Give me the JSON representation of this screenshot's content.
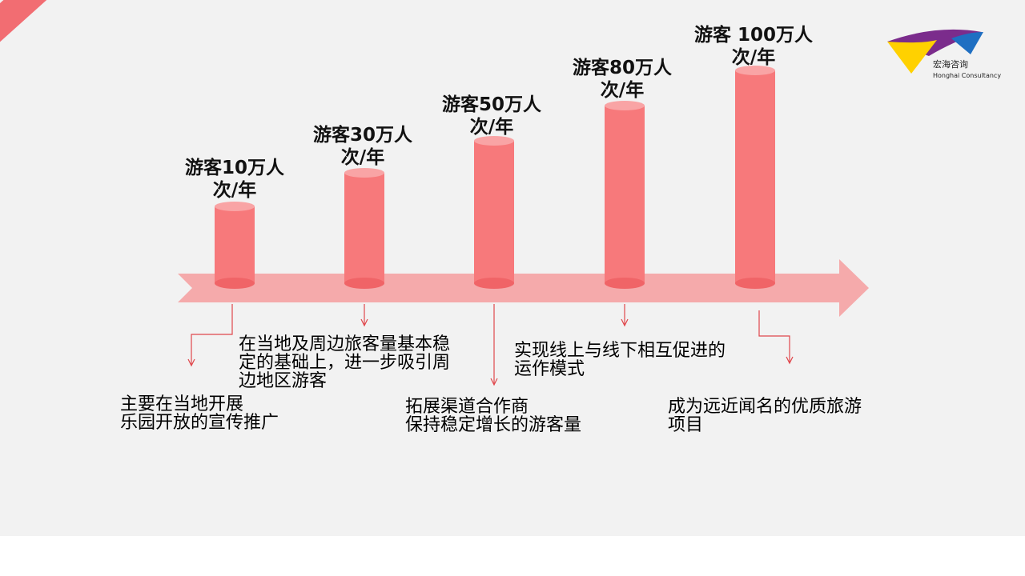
{
  "logo": {
    "name_cn": "宏海咨询",
    "name_en": "Honghai Consultancy",
    "colors": [
      "#ffd100",
      "#7b2c8c",
      "#1f6fc2"
    ]
  },
  "colors": {
    "accent": "#f26d72",
    "cylinder": "#f7797b",
    "arrow": "#f4a5a6",
    "connector": "#e0474c"
  },
  "stages": [
    {
      "label_line1": "游客10万人",
      "label_line2": "次/年"
    },
    {
      "label_line1": "游客30万人",
      "label_line2": "次/年"
    },
    {
      "label_line1": "游客50万人",
      "label_line2": "次/年"
    },
    {
      "label_line1": "游客80万人",
      "label_line2": "次/年"
    },
    {
      "label_line1": "游客 100万人",
      "label_line2": "次/年"
    }
  ],
  "descriptions": [
    "主要在当地开展\n乐园开放的宣传推广",
    "在当地及周边旅客量基本稳\n定的基础上，进一步吸引周\n边地区游客",
    "拓展渠道合作商\n保持稳定增长的游客量",
    "实现线上与线下相互促进的\n运作模式",
    "成为远近闻名的优质旅游\n项目"
  ]
}
